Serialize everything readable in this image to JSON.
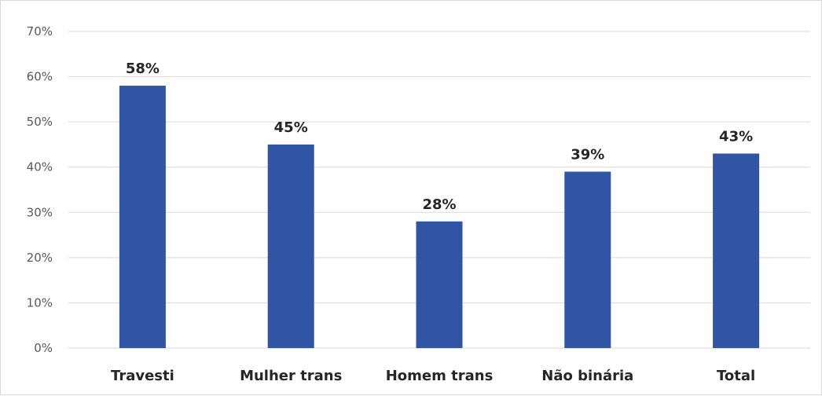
{
  "chart_data": {
    "type": "bar",
    "title": "",
    "xlabel": "",
    "ylabel": "",
    "categories": [
      "Travesti",
      "Mulher trans",
      "Homem trans",
      "Não binária",
      "Total"
    ],
    "values": [
      58,
      45,
      28,
      39,
      43
    ],
    "data_labels": [
      "58%",
      "45%",
      "28%",
      "39%",
      "43%"
    ],
    "ylim": [
      0,
      70
    ],
    "yticks": [
      0,
      10,
      20,
      30,
      40,
      50,
      60,
      70
    ],
    "ytick_labels": [
      "0%",
      "10%",
      "20%",
      "30%",
      "40%",
      "50%",
      "60%",
      "70%"
    ],
    "grid": true,
    "legend": "none",
    "bar_color": "#2f55a4"
  }
}
